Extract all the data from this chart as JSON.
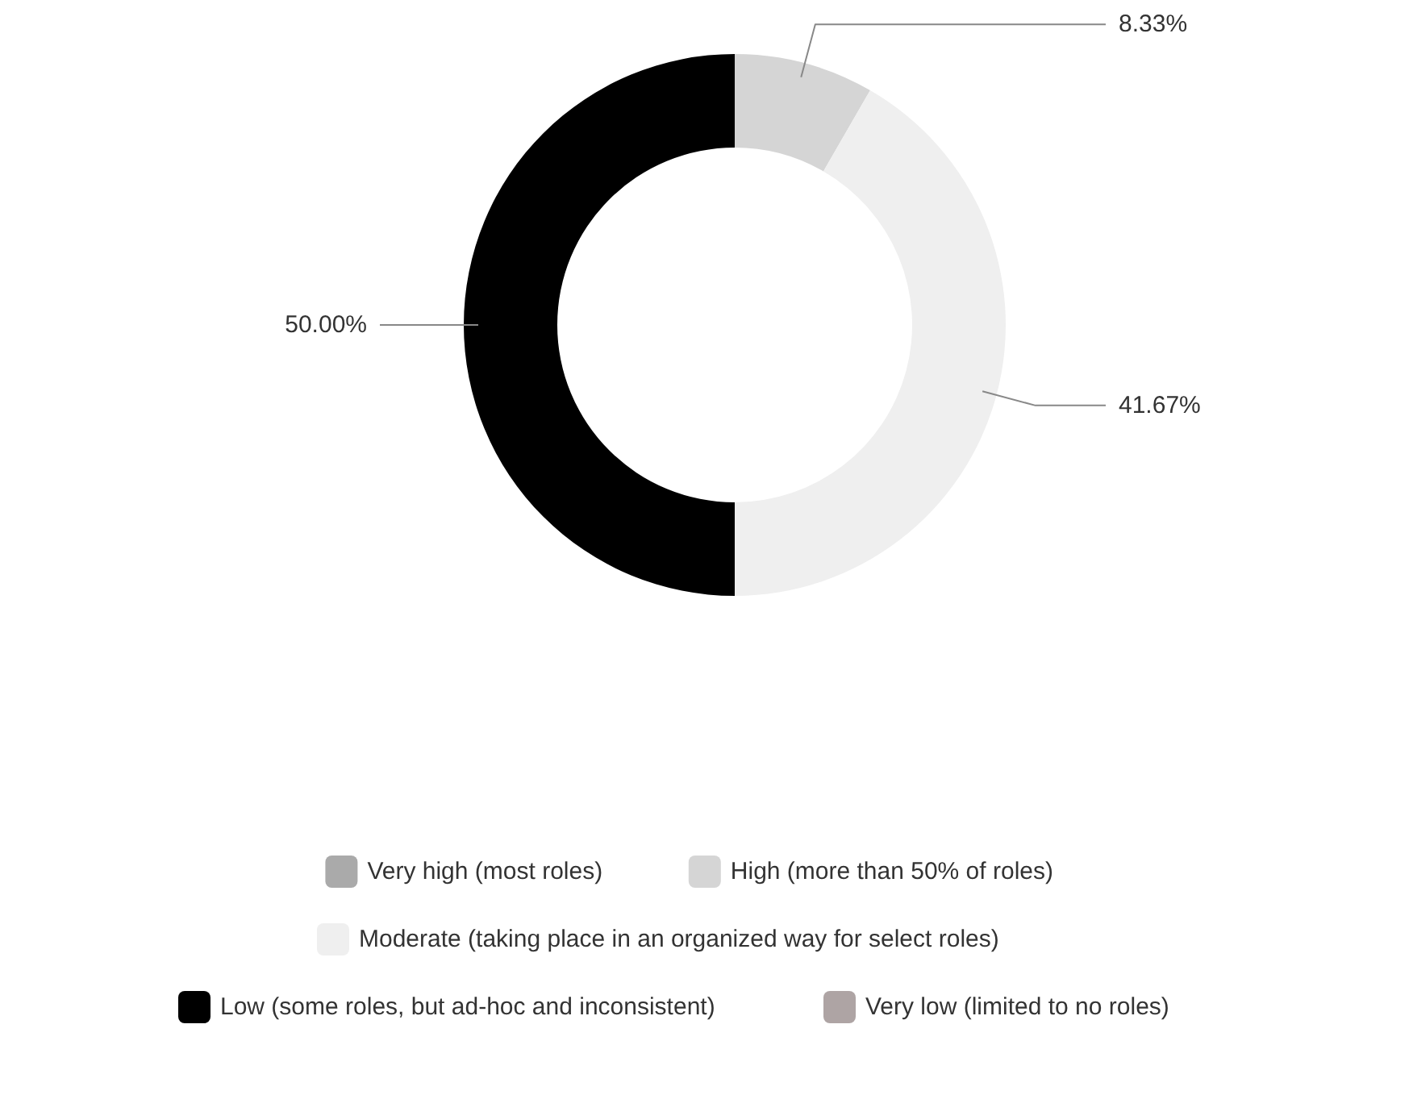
{
  "chart_data": {
    "type": "donut",
    "categories": [
      "Very high (most roles)",
      "High (more than 50% of roles)",
      "Moderate (taking place in an organized way for select roles)",
      "Low (some roles, but ad-hoc and inconsistent)",
      "Very low (limited to no roles)"
    ],
    "values": [
      0,
      8.33,
      41.67,
      50.0,
      0
    ],
    "colors": [
      "#aaaaaa",
      "#d5d5d5",
      "#efefef",
      "#000000",
      "#aea4a4"
    ],
    "value_labels": [
      null,
      "8.33%",
      "41.67%",
      "50.00%",
      null
    ],
    "legend": "bottom"
  }
}
